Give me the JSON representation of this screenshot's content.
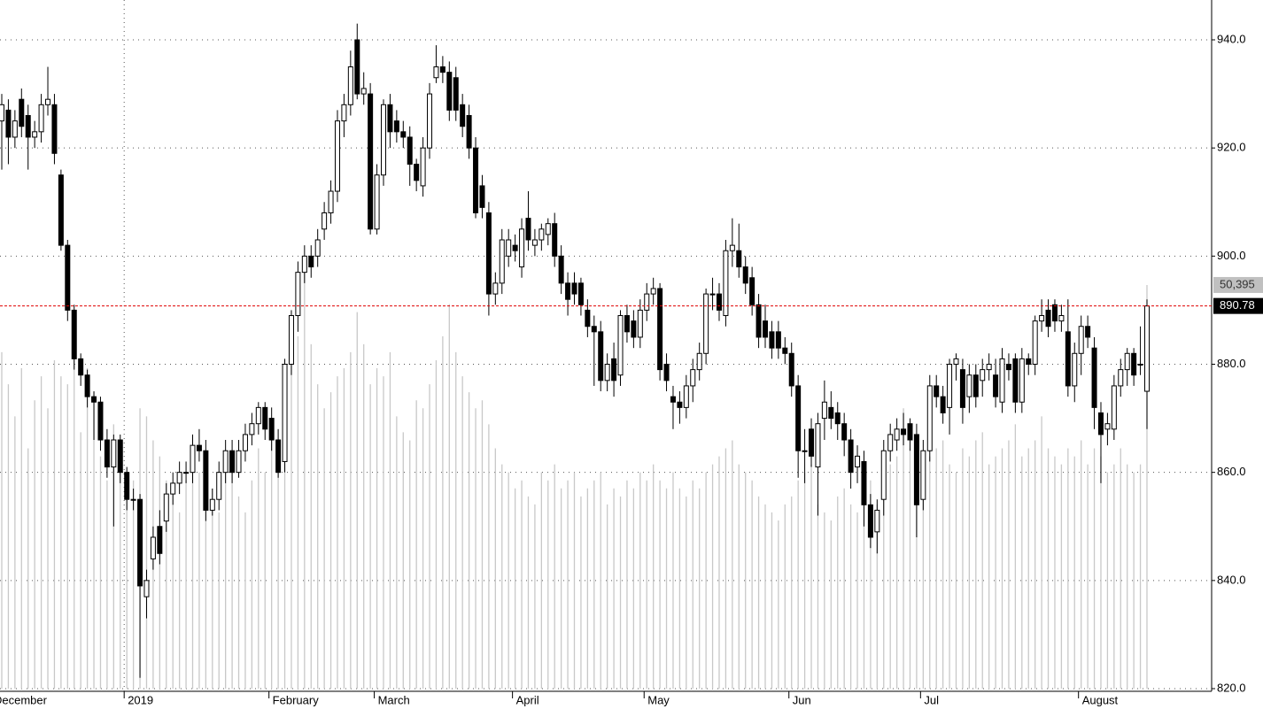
{
  "chart_data": {
    "type": "candlestick",
    "open": [
      925,
      927,
      922,
      929,
      926,
      922,
      923,
      928,
      928,
      915,
      902,
      890,
      881,
      878,
      874,
      873,
      866,
      861,
      866,
      860,
      855,
      855,
      837,
      844,
      850,
      851,
      856,
      858,
      860,
      860,
      865,
      864,
      853,
      855,
      860,
      864,
      860,
      864,
      867,
      869,
      872,
      870,
      866,
      862,
      880,
      889,
      897,
      900,
      900,
      905,
      908,
      912,
      925,
      928,
      940,
      930,
      930,
      905,
      915,
      928,
      925,
      923,
      922,
      917,
      913,
      920,
      933,
      935,
      934,
      933,
      928,
      926,
      920,
      913,
      908,
      893,
      895,
      900,
      902,
      898,
      907,
      902,
      903,
      904,
      906,
      900,
      895,
      895,
      895,
      890,
      887,
      886,
      877,
      881,
      878,
      889,
      888,
      885,
      890,
      893,
      894,
      880,
      874,
      873,
      872,
      876,
      879,
      882,
      893,
      893,
      889,
      901,
      901,
      898,
      896,
      891,
      888,
      886,
      886,
      883,
      882,
      876,
      864,
      868,
      861,
      870,
      872,
      871,
      869,
      866,
      861,
      862,
      854,
      849,
      855,
      864,
      866,
      868,
      869,
      867,
      855,
      864,
      876,
      874,
      872,
      880,
      879,
      874,
      878,
      877,
      879,
      878,
      873,
      880,
      881,
      873,
      881,
      880,
      888,
      890,
      891,
      888,
      886,
      876,
      882,
      887,
      883,
      871,
      868,
      868,
      876,
      879,
      882,
      880,
      875
    ],
    "high": [
      930,
      929,
      927,
      931,
      928,
      925,
      930,
      935,
      930,
      916,
      903,
      891,
      882,
      879,
      875,
      874,
      868,
      867,
      867,
      861,
      857,
      856,
      842,
      850,
      853,
      858,
      860,
      862,
      862,
      867,
      868,
      866,
      857,
      862,
      866,
      866,
      866,
      869,
      871,
      873,
      873,
      872,
      868,
      881,
      890,
      899,
      902,
      902,
      905,
      910,
      914,
      927,
      930,
      938,
      943,
      934,
      932,
      917,
      929,
      930,
      927,
      925,
      924,
      918,
      922,
      932,
      939,
      937,
      936,
      935,
      930,
      928,
      922,
      915,
      910,
      897,
      905,
      905,
      904,
      907,
      912,
      905,
      906,
      907,
      908,
      902,
      897,
      897,
      896,
      892,
      889,
      888,
      882,
      884,
      890,
      891,
      890,
      892,
      895,
      896,
      895,
      882,
      876,
      875,
      878,
      881,
      884,
      894,
      896,
      895,
      903,
      907,
      906,
      900,
      898,
      893,
      891,
      888,
      888,
      885,
      884,
      878,
      868,
      870,
      871,
      877,
      875,
      873,
      871,
      868,
      865,
      864,
      856,
      855,
      866,
      869,
      870,
      871,
      870,
      869,
      866,
      878,
      878,
      876,
      881,
      882,
      881,
      880,
      880,
      881,
      882,
      881,
      883,
      882,
      882,
      883,
      882,
      889,
      892,
      892,
      892,
      891,
      892,
      884,
      889,
      889,
      885,
      873,
      871,
      878,
      881,
      883,
      883,
      887,
      892
    ],
    "low": [
      916,
      917,
      920,
      922,
      916,
      920,
      921,
      926,
      917,
      901,
      888,
      879,
      876,
      872,
      866,
      864,
      859,
      850,
      858,
      853,
      853,
      822,
      833,
      842,
      843,
      849,
      854,
      856,
      858,
      858,
      862,
      851,
      852,
      853,
      858,
      858,
      859,
      862,
      865,
      867,
      866,
      864,
      859,
      860,
      878,
      886,
      895,
      896,
      898,
      903,
      906,
      910,
      922,
      926,
      929,
      928,
      904,
      904,
      913,
      920,
      921,
      920,
      913,
      912,
      911,
      918,
      932,
      932,
      925,
      925,
      922,
      918,
      907,
      907,
      889,
      891,
      893,
      898,
      899,
      896,
      901,
      900,
      901,
      902,
      898,
      893,
      889,
      891,
      889,
      885,
      876,
      875,
      875,
      874,
      876,
      884,
      883,
      883,
      888,
      891,
      877,
      875,
      868,
      869,
      870,
      873,
      877,
      880,
      890,
      888,
      887,
      898,
      896,
      893,
      889,
      883,
      883,
      881,
      881,
      880,
      874,
      859,
      858,
      861,
      852,
      866,
      868,
      866,
      863,
      857,
      858,
      850,
      846,
      845,
      852,
      862,
      864,
      865,
      864,
      848,
      853,
      862,
      872,
      869,
      867,
      877,
      869,
      871,
      872,
      874,
      877,
      872,
      871,
      877,
      871,
      871,
      878,
      878,
      886,
      885,
      886,
      886,
      874,
      873,
      878,
      883,
      868,
      858,
      865,
      866,
      874,
      876,
      876,
      878,
      868
    ],
    "close": [
      928,
      922,
      925,
      924,
      922,
      923,
      928,
      929,
      919,
      902,
      890,
      881,
      878,
      874,
      873,
      866,
      861,
      866,
      860,
      855,
      855,
      839,
      840,
      848,
      845,
      856,
      858,
      860,
      860,
      865,
      864,
      853,
      855,
      860,
      864,
      860,
      864,
      867,
      869,
      872,
      868,
      866,
      860,
      880,
      889,
      897,
      900,
      898,
      903,
      908,
      912,
      925,
      928,
      935,
      930,
      931,
      905,
      915,
      928,
      923,
      923,
      922,
      917,
      914,
      920,
      930,
      935,
      934,
      927,
      927,
      924,
      920,
      908,
      909,
      893,
      895,
      903,
      903,
      901,
      905,
      903,
      903,
      905,
      906,
      900,
      895,
      892,
      893,
      891,
      887,
      886,
      877,
      880,
      877,
      889,
      886,
      885,
      890,
      893,
      894,
      879,
      877,
      873,
      872,
      876,
      879,
      882,
      893,
      893,
      890,
      901,
      902,
      898,
      895,
      891,
      885,
      885,
      883,
      883,
      882,
      876,
      864,
      864,
      863,
      869,
      873,
      870,
      869,
      866,
      860,
      863,
      854,
      848,
      853,
      864,
      867,
      868,
      867,
      866,
      854,
      864,
      876,
      874,
      871,
      880,
      881,
      872,
      878,
      874,
      879,
      880,
      874,
      881,
      879,
      873,
      881,
      880,
      888,
      889,
      887,
      888,
      889,
      876,
      882,
      887,
      885,
      872,
      867,
      869,
      876,
      879,
      882,
      878,
      880,
      890.78
    ],
    "volume": {
      "values": [
        42000,
        38000,
        34000,
        40000,
        30000,
        36000,
        39000,
        35000,
        41000,
        39000,
        38000,
        44000,
        32000,
        40000,
        37000,
        29000,
        26000,
        33000,
        27000,
        24000,
        26000,
        35000,
        34000,
        31000,
        29000,
        26000,
        25000,
        22000,
        26000,
        30000,
        27000,
        24000,
        25000,
        22000,
        29000,
        28000,
        24000,
        22000,
        26000,
        30000,
        27000,
        33000,
        30000,
        38000,
        42000,
        44000,
        52000,
        43000,
        38000,
        35000,
        37000,
        39000,
        40000,
        42000,
        47000,
        43000,
        38000,
        40000,
        39000,
        42000,
        34000,
        32000,
        31000,
        36000,
        35000,
        38000,
        41000,
        44000,
        48000,
        42000,
        39000,
        37000,
        35000,
        36000,
        33000,
        30000,
        28000,
        27000,
        25000,
        26000,
        24000,
        23000,
        27000,
        26000,
        28000,
        25000,
        26000,
        27000,
        24000,
        25000,
        26000,
        27000,
        23000,
        25000,
        24000,
        26000,
        25000,
        27000,
        26000,
        28000,
        26000,
        25000,
        27000,
        25000,
        24000,
        26000,
        25000,
        27000,
        28000,
        29000,
        30000,
        31000,
        28000,
        27000,
        26000,
        24000,
        23000,
        22000,
        21000,
        23000,
        24000,
        26000,
        27000,
        28000,
        23000,
        22000,
        21000,
        24000,
        25000,
        23000,
        22000,
        24000,
        26000,
        23000,
        24000,
        28000,
        29000,
        35000,
        30000,
        26000,
        27000,
        29000,
        30000,
        31000,
        28000,
        27000,
        30000,
        29000,
        31000,
        32000,
        28000,
        29000,
        30000,
        31000,
        33000,
        29000,
        30000,
        31000,
        34000,
        30000,
        29000,
        28000,
        30000,
        29000,
        31000,
        28000,
        30000,
        29000,
        27000,
        28000,
        30000,
        28000,
        27000,
        28000,
        50395
      ],
      "ylim": [
        0,
        81000
      ],
      "last_label": "50,395",
      "color": "#c8c8c8"
    },
    "last_price": 890.78,
    "last_price_color": "#e00000",
    "up_color": "#ffffff",
    "down_color": "#000000",
    "ylim": [
      820,
      940
    ],
    "yticks": [
      {
        "value": 820,
        "label": "820.0"
      },
      {
        "value": 840,
        "label": "840.0"
      },
      {
        "value": 860,
        "label": "860.0"
      },
      {
        "value": 880,
        "label": "880.0"
      },
      {
        "value": 900,
        "label": "900.0"
      },
      {
        "value": 920,
        "label": "920.0"
      },
      {
        "value": 940,
        "label": "940.0"
      }
    ],
    "grid": true,
    "xlabels": [
      {
        "index": 0,
        "label": "December"
      },
      {
        "index": 19,
        "label": "2019"
      },
      {
        "index": 41,
        "label": "February"
      },
      {
        "index": 57,
        "label": "March"
      },
      {
        "index": 78,
        "label": "April"
      },
      {
        "index": 98,
        "label": "May"
      },
      {
        "index": 120,
        "label": "Jun"
      },
      {
        "index": 140,
        "label": "Jul"
      },
      {
        "index": 164,
        "label": "August"
      }
    ],
    "year_divider": 19
  }
}
